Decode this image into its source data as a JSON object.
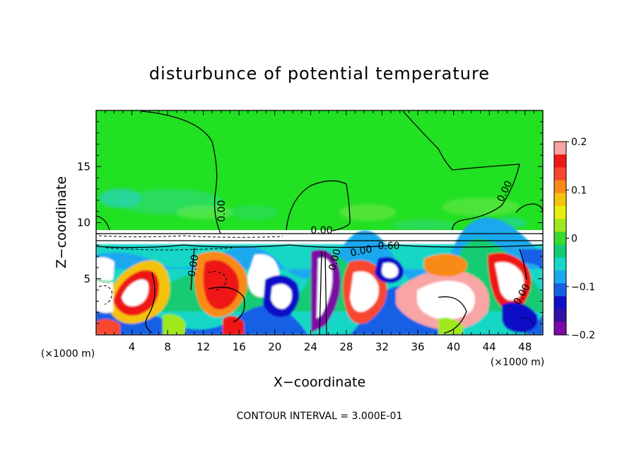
{
  "chart_data": {
    "type": "heatmap",
    "title": "disturbunce of potential temperature",
    "xlabel": "X−coordinate",
    "ylabel": "Z−coordinate",
    "x_unit": "(×1000 m)",
    "x_unit_right": "(×1000 m)",
    "xlim": [
      0,
      50
    ],
    "ylim": [
      0,
      20
    ],
    "x_ticks": [
      "4",
      "8",
      "12",
      "16",
      "20",
      "24",
      "28",
      "32",
      "36",
      "40",
      "44",
      "48"
    ],
    "x_tick_values": [
      4,
      8,
      12,
      16,
      20,
      24,
      28,
      32,
      36,
      40,
      44,
      48
    ],
    "y_ticks": [
      "5",
      "10",
      "15"
    ],
    "y_tick_values": [
      5,
      10,
      15
    ],
    "colorbar": {
      "min": -0.2,
      "max": 0.2,
      "tick_labels": [
        "0.2",
        "0.1",
        "0",
        "−0.1",
        "−0.2"
      ],
      "tick_values": [
        0.2,
        0.1,
        0,
        -0.1,
        -0.2
      ],
      "colors": [
        "#f9a5a5",
        "#ee1717",
        "#f7472f",
        "#fa8a17",
        "#f4c20f",
        "#e6f00f",
        "#9fe81f",
        "#39d92f",
        "#12cb72",
        "#16d7c6",
        "#1ca8ef",
        "#1561e6",
        "#1010c8",
        "#3a0fa3",
        "#7b0aa6"
      ]
    },
    "contour_labels": [
      "0.00",
      "0.00",
      "0.00",
      "0.00",
      "0.60",
      "0.00",
      "0.00",
      "0.00"
    ],
    "annotation": "CONTOUR INTERVAL = 3.000E-01",
    "layers": {
      "upper_region": {
        "z_from": 9,
        "z_to": 20,
        "value_approx": 0.0,
        "color": "#22e022"
      },
      "interface_z": 9,
      "lower_region": {
        "z_from": 0,
        "z_to": 8,
        "value_range": [
          -0.2,
          0.2
        ]
      }
    }
  }
}
